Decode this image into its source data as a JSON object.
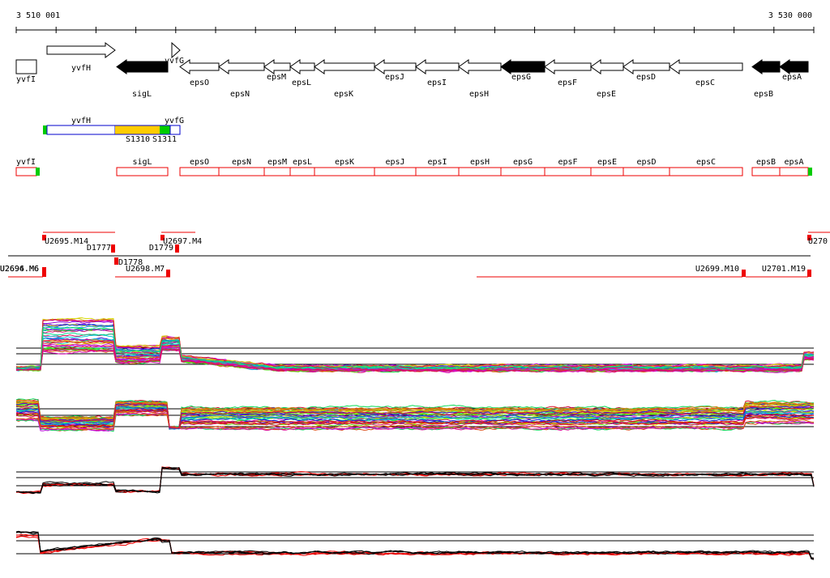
{
  "ruler": {
    "start": "3 510 001",
    "end": "3 530 000"
  },
  "genes": [
    "yvfI",
    "yvfH",
    "sigL",
    "yvfG",
    "epsO",
    "epsN",
    "epsM",
    "epsL",
    "epsK",
    "epsJ",
    "epsI",
    "epsH",
    "epsG",
    "epsF",
    "epsE",
    "epsD",
    "epsC",
    "epsB",
    "epsA"
  ],
  "features": [
    "yvfH",
    "yvfG",
    "S1310",
    "S1311"
  ],
  "transcripts": [
    "yvfI",
    "sigL",
    "epsO",
    "epsN",
    "epsM",
    "epsL",
    "epsK",
    "epsJ",
    "epsI",
    "epsH",
    "epsG",
    "epsF",
    "epsE",
    "epsD",
    "epsC",
    "epsB",
    "epsA"
  ],
  "probes": [
    "U2695.M14",
    "D1777",
    "U2697.M4",
    "D1779",
    "U270",
    "U2694.M6",
    "U2696.M6",
    "D1778",
    "U2698.M7",
    "U2699.M10",
    "U2701.M19"
  ]
}
